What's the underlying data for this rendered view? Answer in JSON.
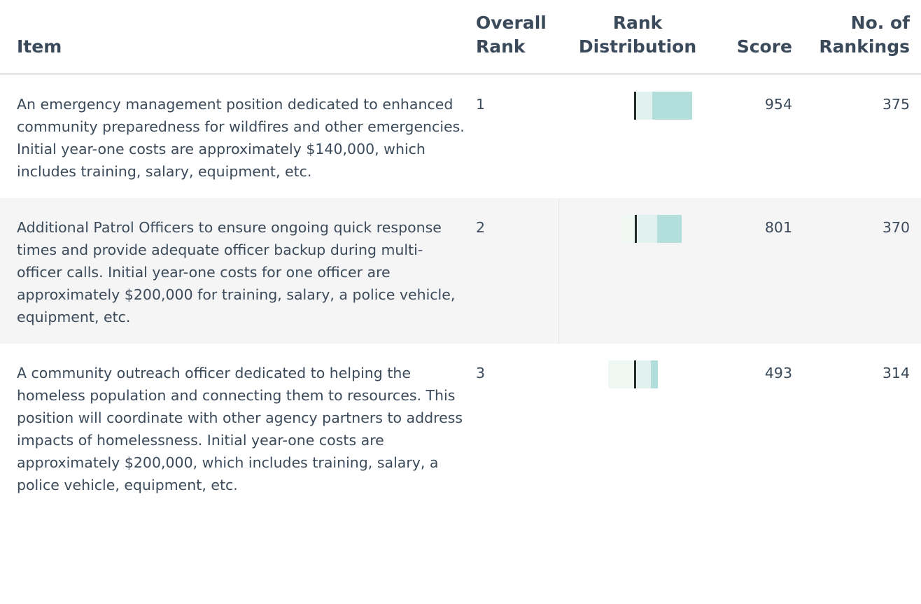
{
  "table": {
    "headers": [
      "Item",
      [
        "Overall",
        "Rank"
      ],
      [
        "Rank",
        "Distribution"
      ],
      "Score",
      [
        "No. of",
        "Rankings"
      ]
    ],
    "rows": [
      {
        "item": "An emergency management position dedicated to enhanced community preparedness for wildfires and other emergencies. Initial year-one costs are approximately $140,000, which includes training, salary, equipment, etc.",
        "rank": "1",
        "distribution": [
          0,
          22,
          57
        ],
        "score": "954",
        "rankings": "375"
      },
      {
        "item": "Additional Patrol Officers to ensure ongoing quick response times and provide adequate officer backup during multi-officer calls. Initial year-one costs for one officer are approximately $200,000 for training, salary, a police vehicle, equipment, etc.",
        "rank": "2",
        "distribution": [
          18,
          28,
          35
        ],
        "score": "801",
        "rankings": "370"
      },
      {
        "item": "A community outreach officer dedicated to helping the homeless population and connecting them to resources. This position will coordinate with other agency partners to address impacts of homelessness. Initial year-one costs are approximately $200,000, which includes training, salary, a police vehicle, equipment, etc.",
        "rank": "3",
        "distribution": [
          37,
          20,
          10
        ],
        "score": "493",
        "rankings": "314"
      }
    ]
  }
}
